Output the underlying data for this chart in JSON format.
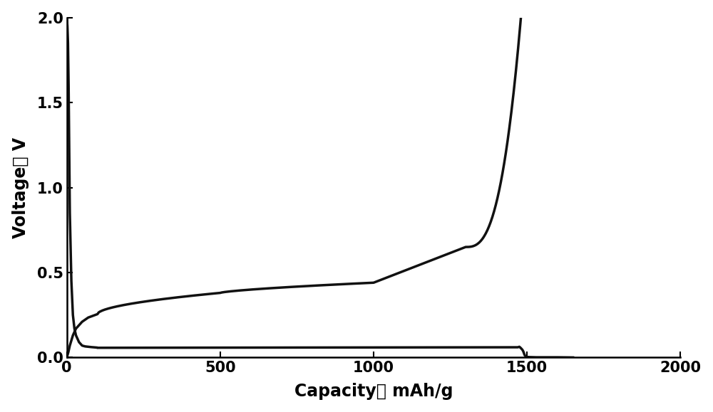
{
  "xlabel": "Capacity， mAh/g",
  "ylabel": "Voltage， V",
  "xlim": [
    0,
    2000
  ],
  "ylim": [
    0,
    2
  ],
  "xticks": [
    0,
    500,
    1000,
    1500,
    2000
  ],
  "yticks": [
    0,
    0.5,
    1,
    1.5,
    2
  ],
  "line_color": "#111111",
  "line_width": 2.5,
  "background_color": "#ffffff",
  "xlabel_fontsize": 17,
  "ylabel_fontsize": 17,
  "tick_fontsize": 15
}
